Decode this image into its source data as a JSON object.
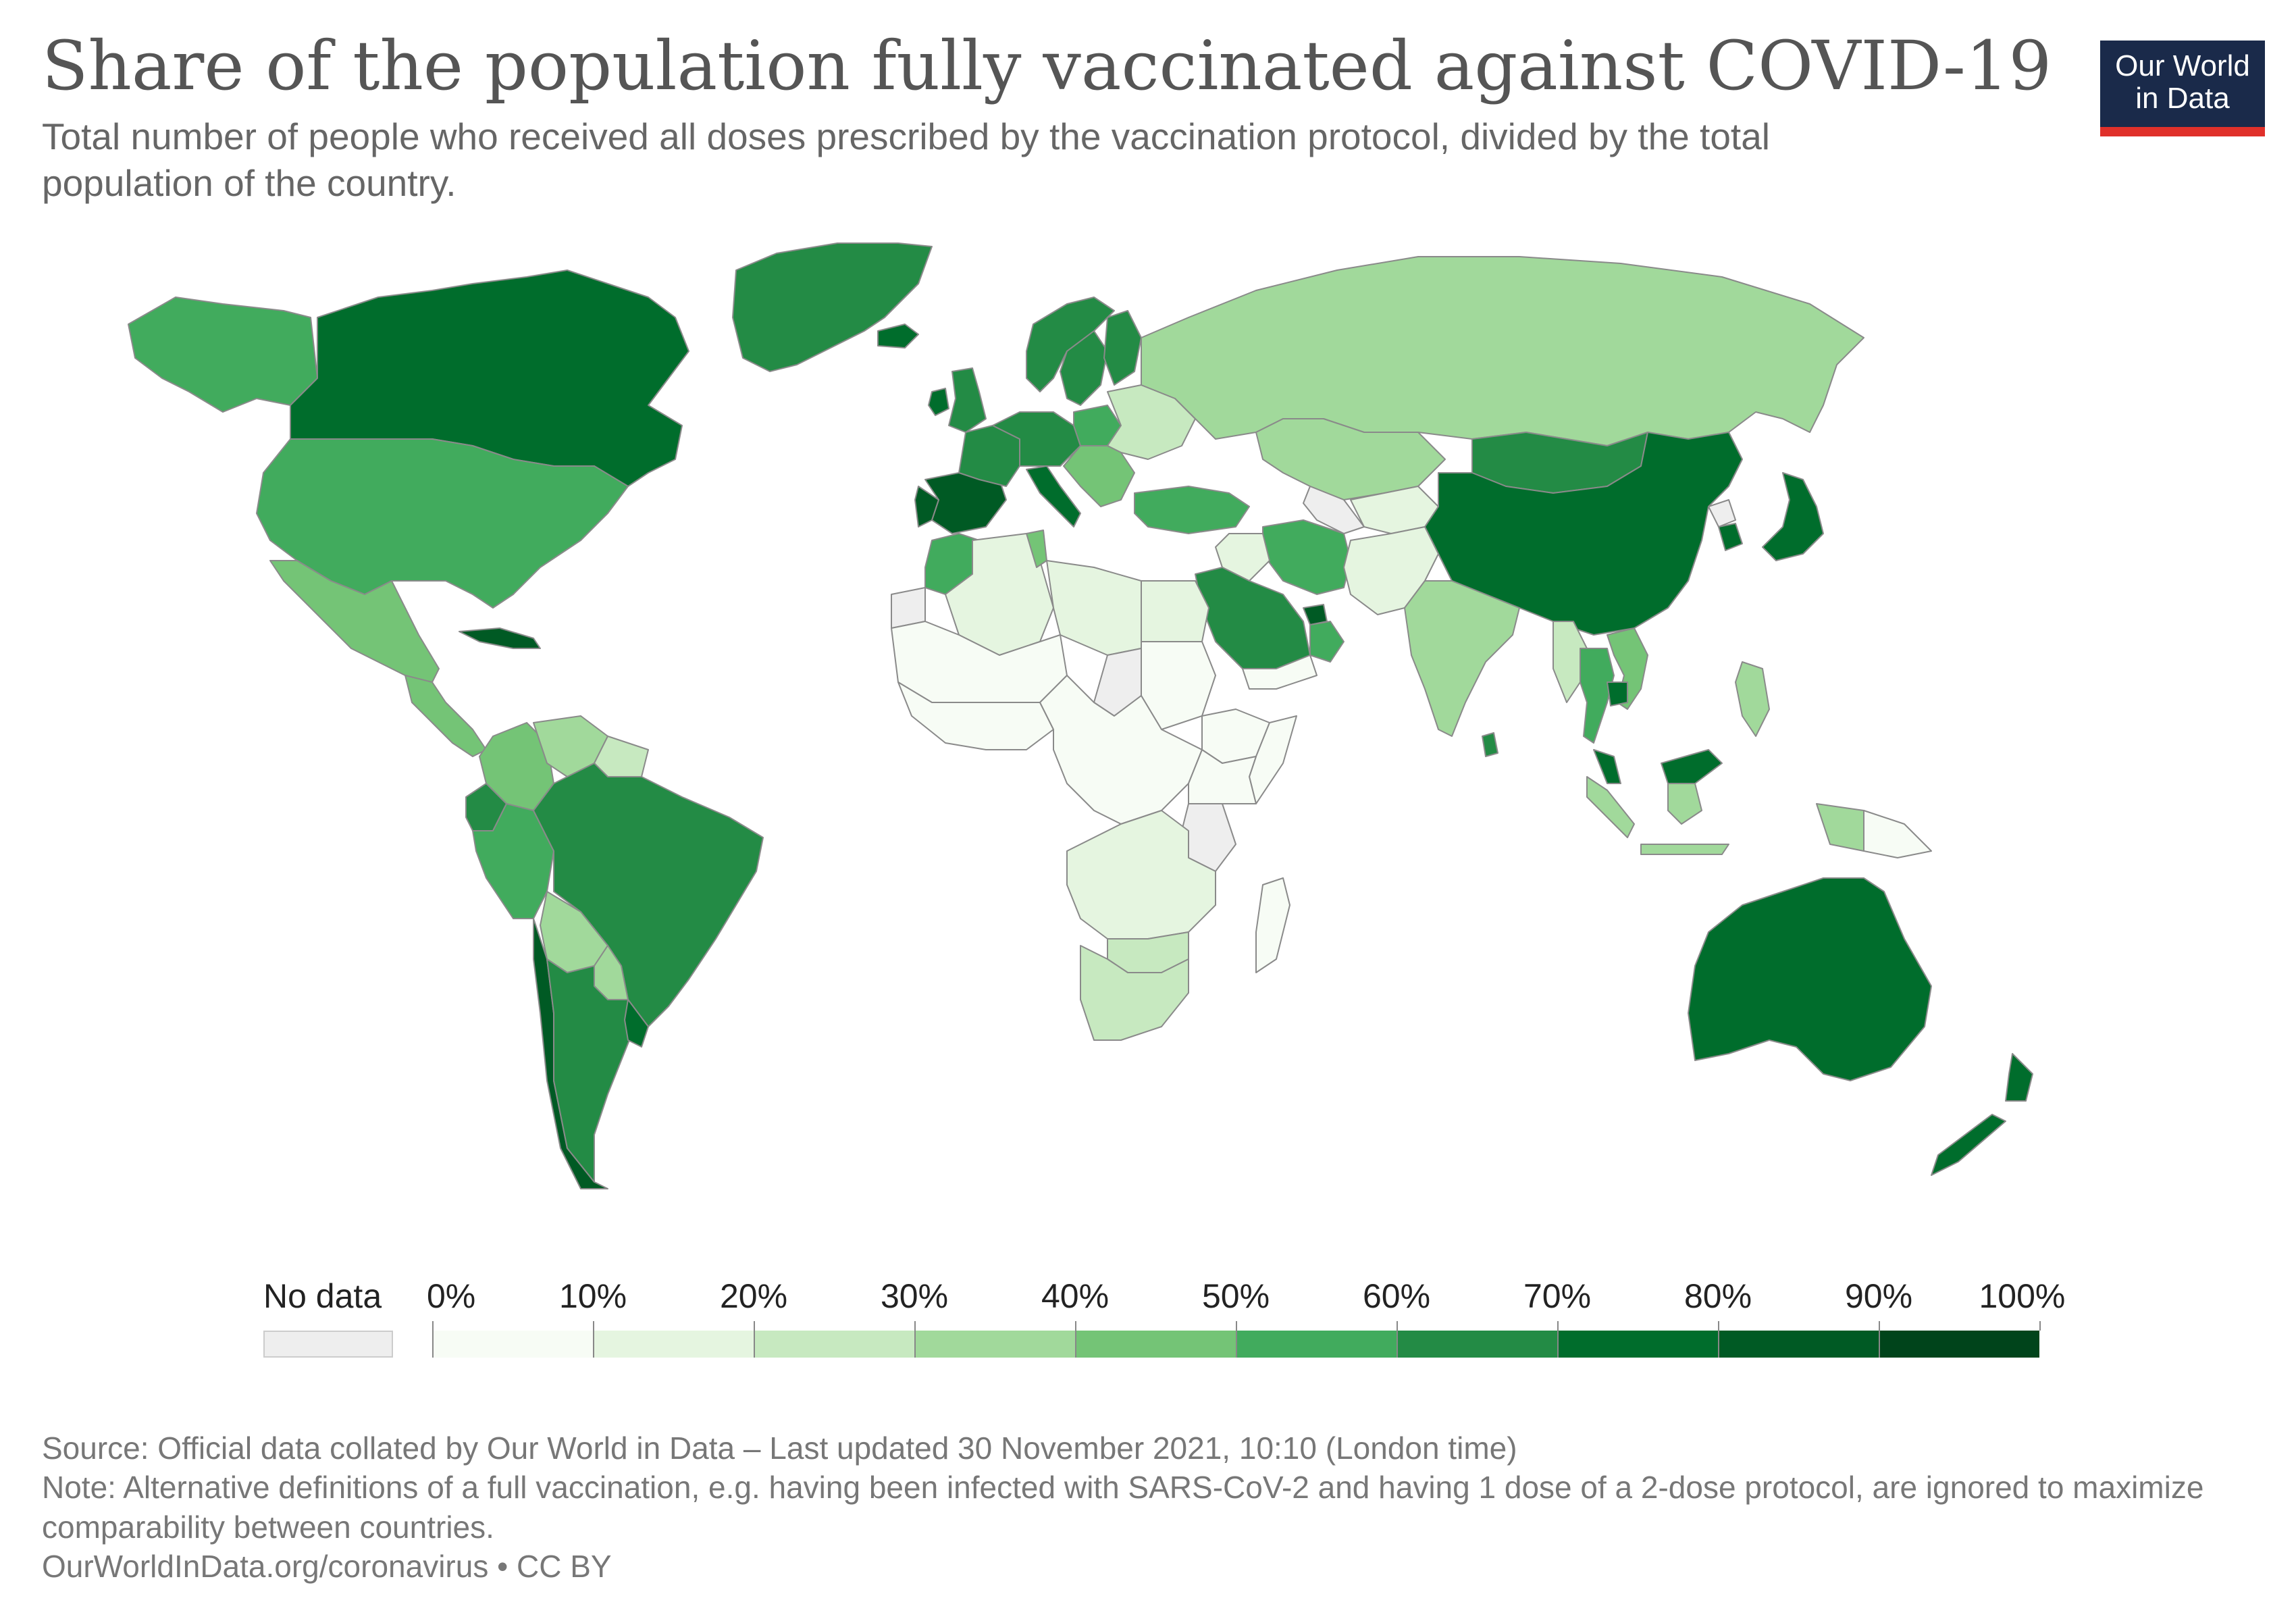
{
  "title": "Share of the population fully vaccinated against COVID-19",
  "subtitle": "Total number of people who received all doses prescribed by the vaccination protocol, divided by the total population of the country.",
  "logo": {
    "line1": "Our World",
    "line2": "in Data"
  },
  "colors": {
    "background": "#ffffff",
    "no_data": "#eeeeee",
    "border": "#8a8a8a",
    "logo_bg": "#1a2a4a",
    "logo_bar": "#e0302a"
  },
  "legend": {
    "no_data_label": "No data",
    "bins": [
      {
        "label": "0%",
        "color": "#f7fcf5"
      },
      {
        "label": "10%",
        "color": "#e5f5e0"
      },
      {
        "label": "20%",
        "color": "#c7e9c0"
      },
      {
        "label": "30%",
        "color": "#a1d99b"
      },
      {
        "label": "40%",
        "color": "#74c476"
      },
      {
        "label": "50%",
        "color": "#41ab5d"
      },
      {
        "label": "60%",
        "color": "#238b45"
      },
      {
        "label": "70%",
        "color": "#006d2c"
      },
      {
        "label": "80%",
        "color": "#005a24"
      },
      {
        "label": "90%",
        "color": "#00441b"
      }
    ],
    "end_label": "100%"
  },
  "regions": [
    {
      "name": "Canada",
      "bin": 7
    },
    {
      "name": "Alaska",
      "bin": 5
    },
    {
      "name": "Greenland",
      "bin": 6
    },
    {
      "name": "United States",
      "bin": 5
    },
    {
      "name": "Mexico",
      "bin": 4
    },
    {
      "name": "Central America",
      "bin": 4
    },
    {
      "name": "Cuba",
      "bin": 8
    },
    {
      "name": "Colombia",
      "bin": 4
    },
    {
      "name": "Venezuela",
      "bin": 3
    },
    {
      "name": "Guianas",
      "bin": 2
    },
    {
      "name": "Brazil",
      "bin": 6
    },
    {
      "name": "Ecuador",
      "bin": 6
    },
    {
      "name": "Peru",
      "bin": 5
    },
    {
      "name": "Bolivia",
      "bin": 3
    },
    {
      "name": "Paraguay",
      "bin": 3
    },
    {
      "name": "Chile",
      "bin": 8
    },
    {
      "name": "Argentina",
      "bin": 6
    },
    {
      "name": "Uruguay",
      "bin": 7
    },
    {
      "name": "Iceland",
      "bin": 7
    },
    {
      "name": "Ireland",
      "bin": 7
    },
    {
      "name": "United Kingdom",
      "bin": 6
    },
    {
      "name": "Norway",
      "bin": 6
    },
    {
      "name": "Sweden",
      "bin": 6
    },
    {
      "name": "Finland",
      "bin": 6
    },
    {
      "name": "Spain",
      "bin": 8
    },
    {
      "name": "Portugal",
      "bin": 8
    },
    {
      "name": "France",
      "bin": 6
    },
    {
      "name": "Central Europe",
      "bin": 6
    },
    {
      "name": "Italy",
      "bin": 7
    },
    {
      "name": "Poland",
      "bin": 5
    },
    {
      "name": "Eastern Europe",
      "bin": 2
    },
    {
      "name": "Balkans",
      "bin": 4
    },
    {
      "name": "Turkey",
      "bin": 5
    },
    {
      "name": "Russia",
      "bin": 3
    },
    {
      "name": "Kazakhstan",
      "bin": 3
    },
    {
      "name": "Central Asia",
      "bin": 1
    },
    {
      "name": "Mongolia",
      "bin": 6
    },
    {
      "name": "China",
      "bin": 7
    },
    {
      "name": "Japan",
      "bin": 7
    },
    {
      "name": "South Korea",
      "bin": 7
    },
    {
      "name": "Iran",
      "bin": 5
    },
    {
      "name": "Iraq",
      "bin": 1
    },
    {
      "name": "Saudi Arabia",
      "bin": 6
    },
    {
      "name": "Oman",
      "bin": 5
    },
    {
      "name": "United Arab Emirates",
      "bin": 8
    },
    {
      "name": "Yemen",
      "bin": 0
    },
    {
      "name": "Afghanistan & Pakistan",
      "bin": 1
    },
    {
      "name": "India",
      "bin": 3
    },
    {
      "name": "Sri Lanka",
      "bin": 6
    },
    {
      "name": "Myanmar",
      "bin": 2
    },
    {
      "name": "Thailand",
      "bin": 5
    },
    {
      "name": "Vietnam",
      "bin": 4
    },
    {
      "name": "Cambodia",
      "bin": 7
    },
    {
      "name": "Malaysia",
      "bin": 7
    },
    {
      "name": "Indonesia",
      "bin": 3
    },
    {
      "name": "Philippines",
      "bin": 3
    },
    {
      "name": "Papua New Guinea",
      "bin": 0
    },
    {
      "name": "Australia",
      "bin": 7
    },
    {
      "name": "New Zealand",
      "bin": 7
    },
    {
      "name": "Morocco",
      "bin": 5
    },
    {
      "name": "Algeria",
      "bin": 1
    },
    {
      "name": "Tunisia",
      "bin": 4
    },
    {
      "name": "Libya",
      "bin": 1
    },
    {
      "name": "Egypt",
      "bin": 1
    },
    {
      "name": "Sahel",
      "bin": 0
    },
    {
      "name": "West Africa",
      "bin": 0
    },
    {
      "name": "Central Africa",
      "bin": 0
    },
    {
      "name": "Sudan",
      "bin": 0
    },
    {
      "name": "Ethiopia",
      "bin": 0
    },
    {
      "name": "Somalia",
      "bin": 0
    },
    {
      "name": "East Africa",
      "bin": 0
    },
    {
      "name": "Southern Africa",
      "bin": 1
    },
    {
      "name": "Botswana & Zimbabwe",
      "bin": 2
    },
    {
      "name": "South Africa",
      "bin": 2
    },
    {
      "name": "Madagascar",
      "bin": 0
    },
    {
      "name": "Western Sahara",
      "bin": -1
    },
    {
      "name": "Chad",
      "bin": -1
    },
    {
      "name": "Tanzania",
      "bin": -1
    },
    {
      "name": "Turkmenistan",
      "bin": -1
    },
    {
      "name": "North Korea",
      "bin": -1
    }
  ],
  "footer": {
    "source": "Source: Official data collated by Our World in Data – Last updated 30 November 2021, 10:10 (London time)",
    "note": "Note: Alternative definitions of a full vaccination, e.g. having been infected with SARS-CoV-2 and having 1 dose of a 2-dose protocol, are ignored to maximize comparability between countries.",
    "url": "OurWorldInData.org/coronavirus • CC BY"
  }
}
